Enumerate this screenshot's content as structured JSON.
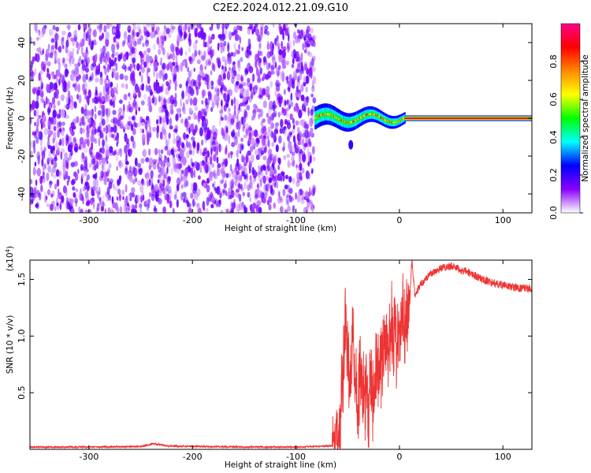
{
  "title": "C2E2.2024.012.21.09.G10",
  "chart_data": [
    {
      "type": "heatmap",
      "xlabel": "Height of straight line (km)",
      "ylabel": "Frequency (Hz)",
      "xlim": [
        -357,
        128
      ],
      "ylim": [
        -50,
        50
      ],
      "x_ticks": [
        -300,
        -200,
        -100,
        0,
        100
      ],
      "y_ticks": [
        -40,
        -20,
        0,
        20,
        40
      ],
      "colorbar": {
        "label": "Normalized spectral amplitude",
        "range": [
          0,
          1
        ],
        "ticks": [
          "0.0",
          "0.2",
          "0.4",
          "0.6",
          "0.8"
        ],
        "tick_values": [
          0,
          0.2,
          0.4,
          0.6,
          0.8
        ],
        "colors": [
          "#ffffff",
          "#8800ff",
          "#0000ff",
          "#00ffff",
          "#00ff00",
          "#ffff00",
          "#ff8800",
          "#ff0000",
          "#ff0088"
        ]
      },
      "regions": [
        {
          "name": "noise",
          "x_range": [
            -357,
            -82
          ],
          "freq_range": [
            -50,
            50
          ],
          "amplitude": 0.1
        },
        {
          "name": "transition",
          "x_range": [
            -82,
            5
          ],
          "freq_center": 0,
          "freq_spread": 6,
          "amplitude": 0.45
        },
        {
          "name": "steady",
          "x_range": [
            5,
            128
          ],
          "freq_center": 0,
          "freq_spread": 1.5,
          "amplitude": 0.9
        }
      ]
    },
    {
      "type": "line",
      "xlabel": "Height of straight line (km)",
      "ylabel": "SNR (10 * v/v)",
      "yscale_label": "(x10",
      "yscale_exp": "4",
      "yscale_close": ")",
      "xlim": [
        -357,
        128
      ],
      "ylim": [
        0,
        1.67
      ],
      "x_ticks": [
        -300,
        -200,
        -100,
        0,
        100
      ],
      "y_ticks": [
        0.5,
        1.0,
        1.5
      ],
      "y_tick_labels": [
        "0.5",
        "1.0",
        "1.5"
      ],
      "series": [
        {
          "color": "#ee3333",
          "x": [
            -357,
            -300,
            -250,
            -237,
            -225,
            -150,
            -100,
            -65,
            -60,
            -57,
            -55,
            -52,
            -50,
            -48,
            -45,
            -42,
            -40,
            -38,
            -35,
            -32,
            -30,
            -28,
            -25,
            -20,
            -15,
            -10,
            -5,
            0,
            5,
            10,
            12,
            15,
            20,
            25,
            30,
            40,
            50,
            60,
            70,
            80,
            90,
            100,
            110,
            120,
            128
          ],
          "y": [
            0.02,
            0.02,
            0.025,
            0.05,
            0.03,
            0.02,
            0.02,
            0.03,
            0.1,
            0.35,
            0.7,
            1.2,
            0.9,
            0.6,
            1.0,
            0.5,
            0.3,
            0.9,
            0.4,
            0.6,
            0.2,
            0.7,
            0.5,
            0.75,
            0.9,
            1.0,
            0.95,
            1.05,
            1.15,
            1.3,
            1.67,
            1.35,
            1.45,
            1.5,
            1.55,
            1.6,
            1.62,
            1.58,
            1.55,
            1.5,
            1.47,
            1.45,
            1.43,
            1.42,
            1.42
          ]
        }
      ]
    }
  ]
}
